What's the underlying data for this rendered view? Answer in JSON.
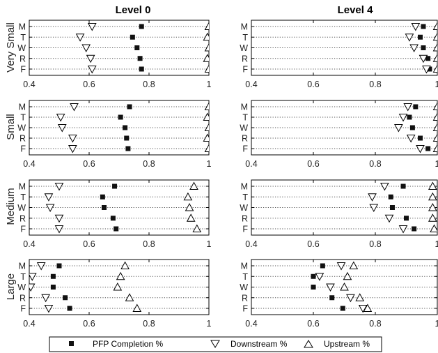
{
  "chart_data": {
    "type": "scatter",
    "columns": [
      "Level 0",
      "Level 4"
    ],
    "rows": [
      "Very Small",
      "Small",
      "Medium",
      "Large"
    ],
    "categories": [
      "M",
      "T",
      "W",
      "R",
      "F"
    ],
    "xlim": [
      0.4,
      1.0
    ],
    "xticks": [
      0.4,
      0.6,
      0.8,
      1.0
    ],
    "xtick_labels": [
      "0.4",
      "0.6",
      "0.8",
      "1"
    ],
    "grid": "dotted horizontal lines per category",
    "legend_position": "bottom-center",
    "series_names": [
      "PFP Completion %",
      "Downstream %",
      "Upstream %"
    ],
    "series_markers": [
      "filled-square",
      "down-triangle",
      "up-triangle"
    ],
    "panels": [
      {
        "column": "Level 0",
        "row": "Very Small",
        "series": [
          {
            "name": "PFP Completion %",
            "values": [
              0.775,
              0.745,
              0.76,
              0.77,
              0.775
            ]
          },
          {
            "name": "Downstream %",
            "values": [
              0.61,
              0.57,
              0.59,
              0.605,
              0.61
            ]
          },
          {
            "name": "Upstream %",
            "values": [
              1.0,
              0.995,
              1.0,
              0.995,
              1.0
            ]
          }
        ]
      },
      {
        "column": "Level 4",
        "row": "Very Small",
        "series": [
          {
            "name": "PFP Completion %",
            "values": [
              0.955,
              0.945,
              0.955,
              0.97,
              0.975
            ]
          },
          {
            "name": "Downstream %",
            "values": [
              0.93,
              0.91,
              0.925,
              0.955,
              0.965
            ]
          },
          {
            "name": "Upstream %",
            "values": [
              1.0,
              1.0,
              1.0,
              1.0,
              1.0
            ]
          }
        ]
      },
      {
        "column": "Level 0",
        "row": "Small",
        "series": [
          {
            "name": "PFP Completion %",
            "values": [
              0.735,
              0.705,
              0.72,
              0.725,
              0.73
            ]
          },
          {
            "name": "Downstream %",
            "values": [
              0.55,
              0.505,
              0.51,
              0.545,
              0.545
            ]
          },
          {
            "name": "Upstream %",
            "values": [
              1.0,
              0.995,
              1.0,
              0.995,
              1.0
            ]
          }
        ]
      },
      {
        "column": "Level 4",
        "row": "Small",
        "series": [
          {
            "name": "PFP Completion %",
            "values": [
              0.93,
              0.91,
              0.92,
              0.945,
              0.97
            ]
          },
          {
            "name": "Downstream %",
            "values": [
              0.905,
              0.89,
              0.875,
              0.915,
              0.945
            ]
          },
          {
            "name": "Upstream %",
            "values": [
              1.0,
              1.0,
              1.0,
              1.0,
              1.0
            ]
          }
        ]
      },
      {
        "column": "Level 0",
        "row": "Medium",
        "series": [
          {
            "name": "PFP Completion %",
            "values": [
              0.685,
              0.645,
              0.65,
              0.68,
              0.69
            ]
          },
          {
            "name": "Downstream %",
            "values": [
              0.5,
              0.465,
              0.47,
              0.5,
              0.5
            ]
          },
          {
            "name": "Upstream %",
            "values": [
              0.95,
              0.93,
              0.935,
              0.94,
              0.96
            ]
          }
        ]
      },
      {
        "column": "Level 4",
        "row": "Medium",
        "series": [
          {
            "name": "PFP Completion %",
            "values": [
              0.89,
              0.85,
              0.855,
              0.9,
              0.925
            ]
          },
          {
            "name": "Downstream %",
            "values": [
              0.83,
              0.79,
              0.795,
              0.845,
              0.89
            ]
          },
          {
            "name": "Upstream %",
            "values": [
              0.985,
              0.985,
              0.985,
              0.985,
              0.99
            ]
          }
        ]
      },
      {
        "column": "Level 0",
        "row": "Large",
        "series": [
          {
            "name": "PFP Completion %",
            "values": [
              0.5,
              0.48,
              0.48,
              0.52,
              0.535
            ]
          },
          {
            "name": "Downstream %",
            "values": [
              0.44,
              0.41,
              0.405,
              0.455,
              0.465
            ]
          },
          {
            "name": "Upstream %",
            "values": [
              0.72,
              0.705,
              0.695,
              0.735,
              0.76
            ]
          }
        ]
      },
      {
        "column": "Level 4",
        "row": "Large",
        "series": [
          {
            "name": "PFP Completion %",
            "values": [
              0.63,
              0.6,
              0.6,
              0.66,
              0.695
            ]
          },
          {
            "name": "Downstream %",
            "values": [
              0.69,
              0.62,
              0.655,
              0.72,
              0.76
            ]
          },
          {
            "name": "Upstream %",
            "values": [
              0.73,
              0.71,
              0.7,
              0.75,
              0.775
            ]
          }
        ]
      }
    ]
  }
}
